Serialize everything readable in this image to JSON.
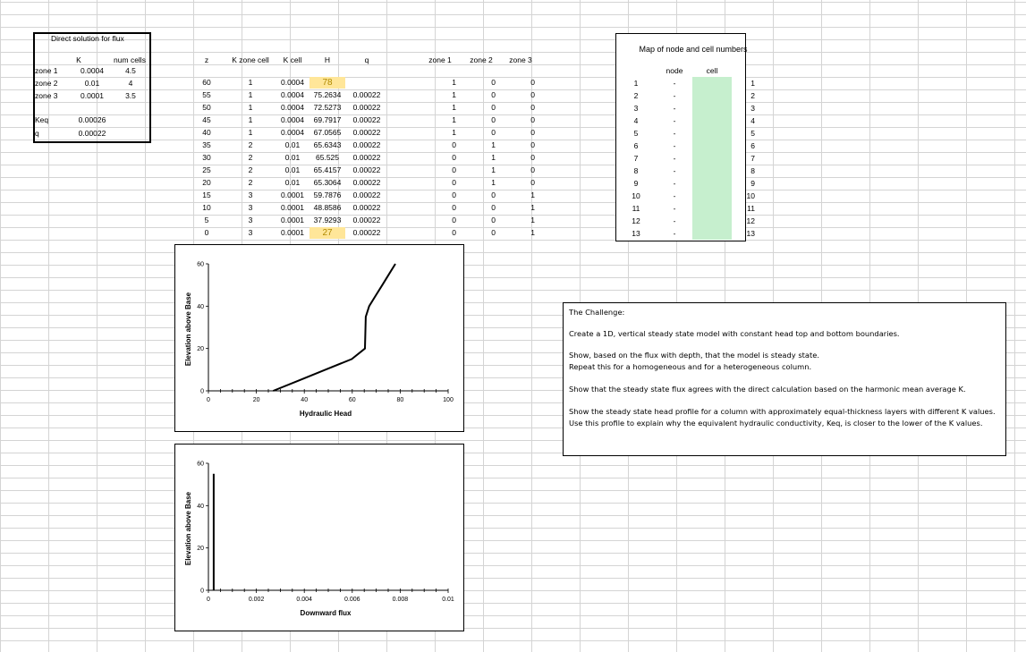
{
  "direct_solution": {
    "title": "Direct solution for flux",
    "col_k": "K",
    "col_cells": "num cells",
    "rows": [
      {
        "label": "zone 1",
        "k": "0.0004",
        "cells": "4.5"
      },
      {
        "label": "zone 2",
        "k": "0.01",
        "cells": "4"
      },
      {
        "label": "zone 3",
        "k": "0.0001",
        "cells": "3.5"
      }
    ],
    "keq_label": "Keq",
    "keq_value": "0.00026",
    "q_label": "q",
    "q_value": "0.00022"
  },
  "model_table": {
    "headers": [
      "z",
      "K zone cell",
      "K cell",
      "H",
      "q",
      "zone 1",
      "zone 2",
      "zone 3"
    ],
    "rows": [
      [
        "60",
        "1",
        "0.0004",
        "78",
        "",
        "1",
        "0",
        "0"
      ],
      [
        "55",
        "1",
        "0.0004",
        "75.2634",
        "0.00022",
        "1",
        "0",
        "0"
      ],
      [
        "50",
        "1",
        "0.0004",
        "72.5273",
        "0.00022",
        "1",
        "0",
        "0"
      ],
      [
        "45",
        "1",
        "0.0004",
        "69.7917",
        "0.00022",
        "1",
        "0",
        "0"
      ],
      [
        "40",
        "1",
        "0.0004",
        "67.0565",
        "0.00022",
        "1",
        "0",
        "0"
      ],
      [
        "35",
        "2",
        "0.01",
        "65.6343",
        "0.00022",
        "0",
        "1",
        "0"
      ],
      [
        "30",
        "2",
        "0.01",
        "65.525",
        "0.00022",
        "0",
        "1",
        "0"
      ],
      [
        "25",
        "2",
        "0.01",
        "65.4157",
        "0.00022",
        "0",
        "1",
        "0"
      ],
      [
        "20",
        "2",
        "0.01",
        "65.3064",
        "0.00022",
        "0",
        "1",
        "0"
      ],
      [
        "15",
        "3",
        "0.0001",
        "59.7876",
        "0.00022",
        "0",
        "0",
        "1"
      ],
      [
        "10",
        "3",
        "0.0001",
        "48.8586",
        "0.00022",
        "0",
        "0",
        "1"
      ],
      [
        "5",
        "3",
        "0.0001",
        "37.9293",
        "0.00022",
        "0",
        "0",
        "1"
      ],
      [
        "0",
        "3",
        "0.0001",
        "27",
        "0.00022",
        "0",
        "0",
        "1"
      ]
    ],
    "highlight_color": "#ffe699"
  },
  "node_map": {
    "title": "Map of node and cell numbers",
    "node_header": "node",
    "cell_header": "cell",
    "rows": [
      [
        "1",
        "-",
        "1"
      ],
      [
        "2",
        "-",
        "2"
      ],
      [
        "3",
        "-",
        "3"
      ],
      [
        "4",
        "-",
        "4"
      ],
      [
        "5",
        "-",
        "5"
      ],
      [
        "6",
        "-",
        "6"
      ],
      [
        "7",
        "-",
        "7"
      ],
      [
        "8",
        "-",
        "8"
      ],
      [
        "9",
        "-",
        "9"
      ],
      [
        "10",
        "-",
        "10"
      ],
      [
        "11",
        "-",
        "11"
      ],
      [
        "12",
        "-",
        "12"
      ],
      [
        "13",
        "-",
        "13"
      ]
    ],
    "cell_color": "#c6efce"
  },
  "challenge": {
    "lines": [
      "The Challenge:",
      "Create a 1D, vertical steady state model with constant head top and bottom boundaries.",
      "Show, based on the flux with depth, that the model is steady state.",
      "Repeat this for a homogeneous and for a heterogeneous column.",
      "Show that the steady state flux agrees with the direct calculation based on the harmonic mean average K.",
      "Show the steady state head profile for a column with approximately equal-thickness layers with different K values.",
      "Use this profile to explain why the equivalent hydraulic conductivity, Keq, is closer to the lower of the K values."
    ]
  },
  "chart_data": [
    {
      "type": "line",
      "xlabel": "Hydraulic Head",
      "ylabel": "Elevation above Base",
      "xlim": [
        0,
        100
      ],
      "ylim": [
        0,
        60
      ],
      "x_ticks": [
        "0",
        "20",
        "40",
        "60",
        "80",
        "100"
      ],
      "y_ticks": [
        "0",
        "20",
        "40",
        "60"
      ],
      "series": [
        {
          "x": [
            78,
            75.2634,
            72.5273,
            69.7917,
            67.0565,
            65.6343,
            65.525,
            65.4157,
            65.3064,
            59.7876,
            48.8586,
            37.9293,
            27
          ],
          "y": [
            60,
            55,
            50,
            45,
            40,
            35,
            30,
            25,
            20,
            15,
            10,
            5,
            0
          ]
        }
      ]
    },
    {
      "type": "line",
      "xlabel": "Downward flux",
      "ylabel": "Elevation above Base",
      "xlim": [
        0,
        0.01
      ],
      "ylim": [
        0,
        60
      ],
      "x_ticks": [
        "0",
        "0.002",
        "0.004",
        "0.006",
        "0.008",
        "0.01"
      ],
      "y_ticks": [
        "0",
        "20",
        "40",
        "60"
      ],
      "series": [
        {
          "x": [
            0.00022,
            0.00022,
            0.00022,
            0.00022,
            0.00022,
            0.00022,
            0.00022,
            0.00022,
            0.00022,
            0.00022,
            0.00022,
            0.00022
          ],
          "y": [
            55,
            50,
            45,
            40,
            35,
            30,
            25,
            20,
            15,
            10,
            5,
            0
          ]
        }
      ]
    }
  ]
}
